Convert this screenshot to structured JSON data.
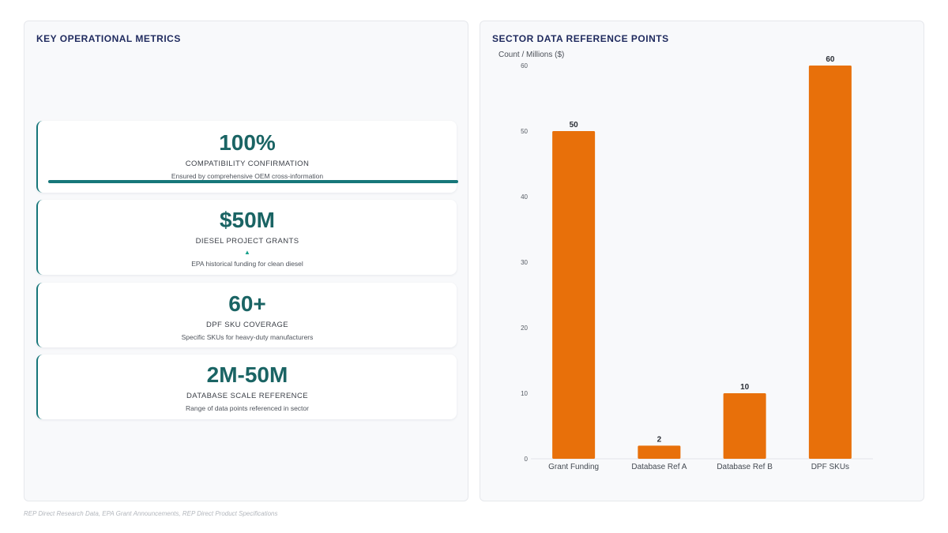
{
  "left_panel": {
    "title": "KEY OPERATIONAL METRICS",
    "cards": [
      {
        "value": "100%",
        "label": "COMPATIBILITY CONFIRMATION",
        "desc": "Ensured by comprehensive OEM cross-information",
        "progress_percent": 100
      },
      {
        "value": "$50M",
        "label": "DIESEL PROJECT GRANTS",
        "arrow": "▲",
        "desc": "EPA historical funding for clean diesel"
      },
      {
        "value": "60+",
        "label": "DPF SKU COVERAGE",
        "desc": "Specific SKUs for heavy-duty manufacturers"
      },
      {
        "value": "2M-50M",
        "label": "DATABASE SCALE REFERENCE",
        "desc": "Range of data points referenced in sector"
      }
    ]
  },
  "right_panel": {
    "title": "SECTOR DATA REFERENCE POINTS"
  },
  "chart_data": {
    "type": "bar",
    "categories": [
      "Grant Funding",
      "Database Ref A",
      "Database Ref B",
      "DPF SKUs"
    ],
    "values": [
      50,
      2,
      10,
      60
    ],
    "ylabel": "Count / Millions ($)",
    "ylim": [
      0,
      60
    ],
    "yticks": [
      0,
      10,
      20,
      30,
      40,
      50,
      60
    ],
    "bar_color": "#e8700a",
    "data_labels": true,
    "grid": false,
    "legend": "none"
  },
  "source": "REP Direct Research Data, EPA Grant Announcements, REP Direct Product Specifications",
  "colors": {
    "accent": "#17777a",
    "value_text": "#1a6464",
    "title_text": "#1f2a5e"
  }
}
